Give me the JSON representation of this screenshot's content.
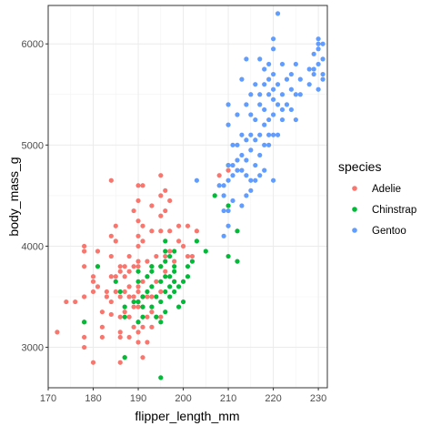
{
  "chart_data": {
    "type": "scatter",
    "title": "",
    "xlabel": "flipper_length_mm",
    "ylabel": "body_mass_g",
    "xlim": [
      170,
      232
    ],
    "ylim": [
      2600,
      6380
    ],
    "x_ticks": [
      170,
      180,
      190,
      200,
      210,
      220,
      230
    ],
    "y_ticks": [
      3000,
      4000,
      5000,
      6000
    ],
    "x_minor_ticks": [
      175,
      185,
      195,
      205,
      215,
      225
    ],
    "y_minor_ticks": [
      3500,
      4500,
      5500
    ],
    "grid": true,
    "theme": "bw",
    "legend": {
      "title": "species",
      "position": "right"
    },
    "series": [
      {
        "name": "Adelie",
        "color": "#F8766D",
        "points": [
          [
            172,
            3150
          ],
          [
            174,
            3450
          ],
          [
            176,
            3450
          ],
          [
            178,
            3000
          ],
          [
            178,
            3100
          ],
          [
            178,
            3250
          ],
          [
            178,
            3500
          ],
          [
            178,
            3800
          ],
          [
            178,
            3950
          ],
          [
            178,
            4000
          ],
          [
            180,
            2850
          ],
          [
            180,
            3550
          ],
          [
            180,
            3650
          ],
          [
            180,
            3700
          ],
          [
            181,
            3600
          ],
          [
            181,
            3800
          ],
          [
            181,
            3950
          ],
          [
            182,
            3100
          ],
          [
            182,
            3200
          ],
          [
            182,
            3350
          ],
          [
            183,
            3500
          ],
          [
            183,
            3550
          ],
          [
            184,
            3325
          ],
          [
            184,
            3450
          ],
          [
            184,
            3700
          ],
          [
            184,
            3900
          ],
          [
            184,
            4100
          ],
          [
            184,
            4650
          ],
          [
            185,
            3550
          ],
          [
            185,
            3700
          ],
          [
            185,
            4050
          ],
          [
            185,
            4200
          ],
          [
            186,
            2850
          ],
          [
            186,
            3100
          ],
          [
            186,
            3150
          ],
          [
            186,
            3300
          ],
          [
            186,
            3500
          ],
          [
            186,
            3750
          ],
          [
            186,
            3800
          ],
          [
            187,
            2900
          ],
          [
            187,
            3350
          ],
          [
            187,
            3550
          ],
          [
            187,
            3700
          ],
          [
            187,
            3800
          ],
          [
            188,
            3100
          ],
          [
            188,
            3300
          ],
          [
            188,
            3500
          ],
          [
            188,
            3600
          ],
          [
            188,
            3750
          ],
          [
            188,
            3900
          ],
          [
            189,
            3200
          ],
          [
            189,
            3400
          ],
          [
            189,
            3500
          ],
          [
            189,
            3800
          ],
          [
            189,
            4350
          ],
          [
            190,
            3050
          ],
          [
            190,
            3150
          ],
          [
            190,
            3250
          ],
          [
            190,
            3400
          ],
          [
            190,
            3450
          ],
          [
            190,
            3550
          ],
          [
            190,
            3600
          ],
          [
            190,
            3800
          ],
          [
            190,
            3850
          ],
          [
            190,
            4000
          ],
          [
            190,
            4100
          ],
          [
            190,
            4250
          ],
          [
            190,
            4450
          ],
          [
            190,
            4600
          ],
          [
            191,
            3200
          ],
          [
            191,
            3400
          ],
          [
            191,
            3500
          ],
          [
            191,
            3650
          ],
          [
            191,
            4050
          ],
          [
            191,
            4200
          ],
          [
            191,
            4600
          ],
          [
            191,
            2900
          ],
          [
            192,
            3050
          ],
          [
            192,
            3300
          ],
          [
            192,
            3500
          ],
          [
            192,
            3700
          ],
          [
            192,
            3850
          ],
          [
            193,
            3200
          ],
          [
            193,
            3350
          ],
          [
            193,
            3500
          ],
          [
            193,
            3800
          ],
          [
            193,
            4150
          ],
          [
            193,
            4400
          ],
          [
            194,
            3650
          ],
          [
            194,
            3900
          ],
          [
            194,
            3300
          ],
          [
            195,
            3300
          ],
          [
            195,
            3550
          ],
          [
            195,
            3800
          ],
          [
            195,
            4150
          ],
          [
            195,
            4300
          ],
          [
            195,
            4500
          ],
          [
            195,
            4700
          ],
          [
            196,
            3750
          ],
          [
            196,
            3900
          ],
          [
            196,
            4350
          ],
          [
            196,
            4550
          ],
          [
            197,
            3950
          ],
          [
            197,
            4150
          ],
          [
            197,
            4450
          ],
          [
            198,
            3850
          ],
          [
            198,
            3650
          ],
          [
            199,
            4050
          ],
          [
            199,
            4200
          ],
          [
            200,
            4000
          ],
          [
            201,
            4200
          ],
          [
            201,
            3900
          ],
          [
            202,
            3900
          ],
          [
            203,
            4150
          ],
          [
            208,
            4700
          ],
          [
            210,
            4750
          ]
        ]
      },
      {
        "name": "Chinstrap",
        "color": "#00BA38",
        "points": [
          [
            178,
            3250
          ],
          [
            181,
            3800
          ],
          [
            185,
            3650
          ],
          [
            186,
            3550
          ],
          [
            187,
            3400
          ],
          [
            187,
            3300
          ],
          [
            187,
            2900
          ],
          [
            189,
            3450
          ],
          [
            190,
            3250
          ],
          [
            190,
            3450
          ],
          [
            190,
            3650
          ],
          [
            190,
            3750
          ],
          [
            191,
            3500
          ],
          [
            191,
            3300
          ],
          [
            191,
            3400
          ],
          [
            192,
            3550
          ],
          [
            192,
            3700
          ],
          [
            193,
            3400
          ],
          [
            193,
            3600
          ],
          [
            193,
            3750
          ],
          [
            193,
            3800
          ],
          [
            194,
            3300
          ],
          [
            194,
            3500
          ],
          [
            195,
            3650
          ],
          [
            195,
            3450
          ],
          [
            195,
            3800
          ],
          [
            195,
            3250
          ],
          [
            195,
            2700
          ],
          [
            196,
            3550
          ],
          [
            196,
            3700
          ],
          [
            196,
            3850
          ],
          [
            196,
            3950
          ],
          [
            196,
            4050
          ],
          [
            196,
            3350
          ],
          [
            197,
            3500
          ],
          [
            197,
            3600
          ],
          [
            197,
            3700
          ],
          [
            197,
            3900
          ],
          [
            198,
            3550
          ],
          [
            198,
            3650
          ],
          [
            198,
            3750
          ],
          [
            198,
            3800
          ],
          [
            198,
            3950
          ],
          [
            199,
            3600
          ],
          [
            199,
            3400
          ],
          [
            200,
            3650
          ],
          [
            200,
            3450
          ],
          [
            201,
            3700
          ],
          [
            201,
            3800
          ],
          [
            202,
            3850
          ],
          [
            203,
            4050
          ],
          [
            205,
            3950
          ],
          [
            207,
            4500
          ],
          [
            210,
            4400
          ],
          [
            210,
            4800
          ],
          [
            212,
            3850
          ],
          [
            212,
            4150
          ],
          [
            210,
            3900
          ]
        ]
      },
      {
        "name": "Gentoo",
        "color": "#619CFF",
        "points": [
          [
            203,
            4650
          ],
          [
            208,
            4600
          ],
          [
            209,
            4100
          ],
          [
            209,
            4350
          ],
          [
            209,
            4500
          ],
          [
            209,
            4600
          ],
          [
            210,
            4200
          ],
          [
            210,
            4650
          ],
          [
            210,
            4800
          ],
          [
            210,
            5200
          ],
          [
            210,
            5400
          ],
          [
            210,
            4350
          ],
          [
            211,
            4700
          ],
          [
            211,
            4800
          ],
          [
            211,
            5000
          ],
          [
            211,
            4450
          ],
          [
            212,
            4750
          ],
          [
            212,
            5000
          ],
          [
            212,
            5300
          ],
          [
            212,
            4850
          ],
          [
            213,
            4400
          ],
          [
            213,
            4750
          ],
          [
            213,
            4900
          ],
          [
            213,
            5100
          ],
          [
            213,
            5650
          ],
          [
            214,
            4500
          ],
          [
            214,
            4700
          ],
          [
            214,
            4850
          ],
          [
            214,
            5050
          ],
          [
            214,
            5400
          ],
          [
            214,
            5850
          ],
          [
            215,
            4550
          ],
          [
            215,
            4650
          ],
          [
            215,
            4950
          ],
          [
            215,
            5100
          ],
          [
            215,
            5300
          ],
          [
            215,
            5500
          ],
          [
            216,
            4650
          ],
          [
            216,
            4800
          ],
          [
            216,
            5050
          ],
          [
            216,
            5250
          ],
          [
            216,
            5600
          ],
          [
            217,
            4700
          ],
          [
            217,
            4900
          ],
          [
            217,
            5100
          ],
          [
            217,
            5400
          ],
          [
            217,
            5500
          ],
          [
            217,
            5850
          ],
          [
            218,
            4750
          ],
          [
            218,
            5000
          ],
          [
            218,
            5200
          ],
          [
            218,
            5350
          ],
          [
            218,
            5600
          ],
          [
            218,
            5750
          ],
          [
            219,
            5000
          ],
          [
            219,
            5100
          ],
          [
            219,
            5250
          ],
          [
            219,
            5500
          ],
          [
            219,
            5650
          ],
          [
            219,
            5800
          ],
          [
            220,
            4650
          ],
          [
            220,
            5100
          ],
          [
            220,
            5300
          ],
          [
            220,
            5450
          ],
          [
            220,
            5550
          ],
          [
            220,
            5700
          ],
          [
            220,
            5950
          ],
          [
            220,
            6050
          ],
          [
            221,
            5100
          ],
          [
            221,
            5400
          ],
          [
            221,
            5600
          ],
          [
            221,
            6300
          ],
          [
            222,
            5250
          ],
          [
            222,
            5350
          ],
          [
            222,
            5500
          ],
          [
            222,
            5800
          ],
          [
            223,
            5400
          ],
          [
            223,
            5650
          ],
          [
            224,
            5350
          ],
          [
            224,
            5550
          ],
          [
            224,
            5700
          ],
          [
            225,
            5250
          ],
          [
            225,
            5500
          ],
          [
            225,
            5800
          ],
          [
            226,
            5500
          ],
          [
            226,
            5650
          ],
          [
            228,
            5600
          ],
          [
            228,
            5750
          ],
          [
            229,
            5900
          ],
          [
            229,
            5750
          ],
          [
            230,
            5550
          ],
          [
            230,
            5800
          ],
          [
            230,
            5950
          ],
          [
            230,
            6050
          ],
          [
            231,
            5700
          ],
          [
            231,
            5850
          ],
          [
            231,
            6000
          ],
          [
            230,
            6000
          ],
          [
            231,
            5650
          ],
          [
            229,
            5700
          ]
        ]
      }
    ]
  }
}
